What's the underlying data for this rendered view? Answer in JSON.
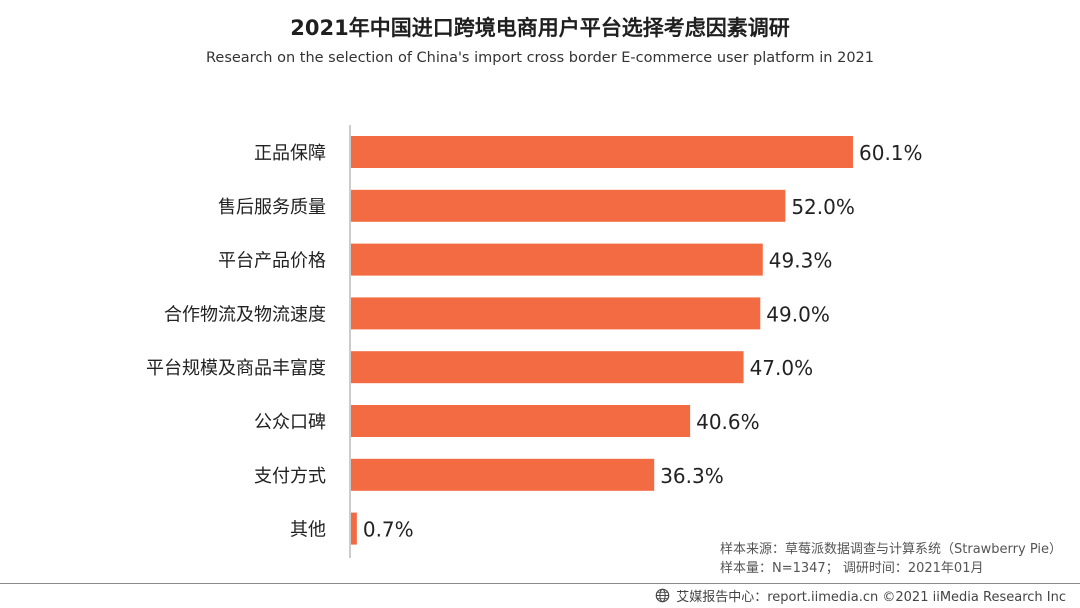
{
  "chart_data": {
    "type": "bar",
    "orientation": "horizontal",
    "title": "2021年中国进口跨境电商用户平台选择考虑因素调研",
    "subtitle": "Research on the selection of China's import cross border E-commerce user platform in 2021",
    "categories": [
      "正品保障",
      "售后服务质量",
      "平台产品价格",
      "合作物流及物流速度",
      "平台规模及商品丰富度",
      "公众口碑",
      "支付方式",
      "其他"
    ],
    "values": [
      60.1,
      52.0,
      49.3,
      49.0,
      47.0,
      40.6,
      36.3,
      0.7
    ],
    "value_labels": [
      "60.1%",
      "52.0%",
      "49.3%",
      "49.0%",
      "47.0%",
      "40.6%",
      "36.3%",
      "0.7%"
    ],
    "unit": "%",
    "xlim": [
      0,
      65
    ],
    "grid": false,
    "legend": "none",
    "bar_color": "#F26B43"
  },
  "source": {
    "line1": "样本来源：草莓派数据调查与计算系统（Strawberry Pie）",
    "line2": "样本量：N=1347； 调研时间：2021年01月"
  },
  "footer": {
    "text": "艾媒报告中心：report.iimedia.cn ©2021 iiMedia Research Inc",
    "icon": "globe-icon"
  }
}
